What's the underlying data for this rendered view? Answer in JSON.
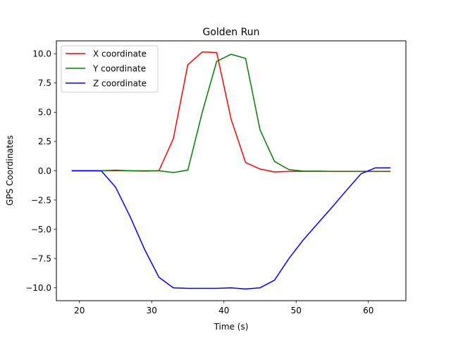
{
  "chart_data": {
    "type": "line",
    "title": "Golden Run",
    "xlabel": "Time (s)",
    "ylabel": "GPS Coordinates",
    "xlim": [
      16.8,
      65.2
    ],
    "ylim": [
      -11.1,
      11.1
    ],
    "xticks": [
      20,
      30,
      40,
      50,
      60
    ],
    "yticks": [
      -10.0,
      -7.5,
      -5.0,
      -2.5,
      0.0,
      2.5,
      5.0,
      7.5,
      10.0
    ],
    "xtick_labels": [
      "20",
      "30",
      "40",
      "50",
      "60"
    ],
    "ytick_labels": [
      "−10.0",
      "−7.5",
      "−5.0",
      "−2.5",
      "0.0",
      "2.5",
      "5.0",
      "7.5",
      "10.0"
    ],
    "grid": false,
    "legend_position": "upper-left",
    "series": [
      {
        "name": "X coordinate",
        "color": "#ff0000",
        "x": [
          19,
          21,
          23,
          25,
          27,
          29,
          31,
          33,
          35,
          37,
          39,
          41,
          43,
          45,
          47,
          49,
          51,
          53,
          55,
          57,
          59,
          61,
          63
        ],
        "y": [
          0.0,
          0.0,
          0.0,
          0.0,
          0.0,
          0.0,
          0.0,
          2.75,
          9.05,
          10.15,
          10.1,
          4.4,
          0.7,
          0.15,
          -0.1,
          -0.05,
          -0.05,
          -0.05,
          -0.05,
          -0.05,
          -0.05,
          -0.05,
          -0.05
        ]
      },
      {
        "name": "Y coordinate",
        "color": "#008000",
        "x": [
          19,
          21,
          23,
          25,
          27,
          29,
          31,
          33,
          35,
          37,
          39,
          41,
          43,
          45,
          47,
          49,
          51,
          53,
          55,
          57,
          59,
          61,
          63
        ],
        "y": [
          0.0,
          0.0,
          0.0,
          0.05,
          0.0,
          -0.03,
          0.0,
          -0.15,
          0.05,
          5.0,
          9.35,
          9.95,
          9.6,
          3.5,
          0.8,
          0.1,
          -0.03,
          -0.03,
          -0.05,
          -0.05,
          -0.05,
          -0.05,
          -0.05
        ]
      },
      {
        "name": "Z coordinate",
        "color": "#0000ff",
        "x": [
          19,
          21,
          23,
          25,
          27,
          29,
          31,
          33,
          35,
          37,
          39,
          41,
          43,
          45,
          47,
          49,
          51,
          53,
          55,
          57,
          59,
          61,
          63
        ],
        "y": [
          0.0,
          0.0,
          0.0,
          -1.4,
          -3.9,
          -6.7,
          -9.1,
          -10.0,
          -10.05,
          -10.05,
          -10.05,
          -10.0,
          -10.1,
          -10.0,
          -9.35,
          -7.5,
          -5.9,
          -4.5,
          -3.1,
          -1.65,
          -0.25,
          0.25,
          0.25
        ]
      }
    ]
  }
}
